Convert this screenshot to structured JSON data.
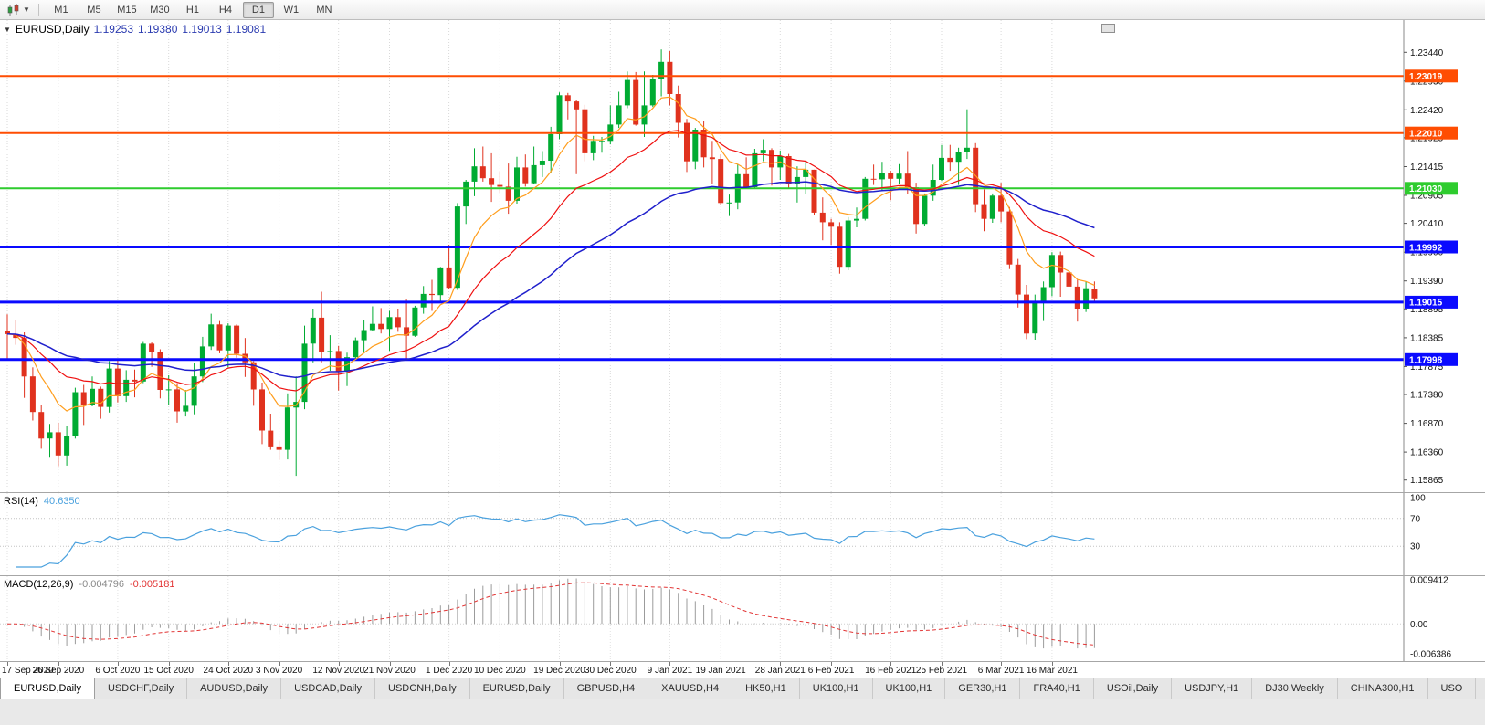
{
  "toolbar": {
    "timeframes": [
      "M1",
      "M5",
      "M15",
      "M30",
      "H1",
      "H4",
      "D1",
      "W1",
      "MN"
    ],
    "active_timeframe": "D1"
  },
  "tabs": {
    "active_index": 0,
    "items": [
      "EURUSD,Daily",
      "USDCHF,Daily",
      "AUDUSD,Daily",
      "USDCAD,Daily",
      "USDCNH,Daily",
      "EURUSD,Daily",
      "GBPUSD,H4",
      "XAUUSD,H4",
      "HK50,H1",
      "UK100,H1",
      "UK100,H1",
      "GER30,H1",
      "FRA40,H1",
      "USOil,Daily",
      "USDJPY,H1",
      "DJ30,Weekly",
      "CHINA300,H1",
      "USO"
    ]
  },
  "chart_data": {
    "type": "candlestick",
    "title": {
      "symbol": "EURUSD,Daily",
      "open": "1.19253",
      "high": "1.19380",
      "low": "1.19013",
      "close": "1.19081"
    },
    "colors": {
      "bull": "#00ab32",
      "bear": "#e0321e",
      "background": "#ffffff",
      "grid": "#d9d9d9"
    },
    "y_axis": {
      "price_top": 1.2401,
      "price_bottom": 1.1565,
      "ticks": [
        "1.23440",
        "1.22930",
        "1.22420",
        "1.21925",
        "1.21415",
        "1.20905",
        "1.20410",
        "1.19900",
        "1.19390",
        "1.18895",
        "1.18385",
        "1.17875",
        "1.17380",
        "1.16870",
        "1.16360",
        "1.15865"
      ]
    },
    "hlines": [
      {
        "price": 1.23019,
        "label": "1.23019",
        "color": "#ff4d02",
        "width": 2
      },
      {
        "price": 1.2201,
        "label": "1.22010",
        "color": "#ff4d02",
        "width": 2
      },
      {
        "price": 1.2103,
        "label": "1.21030",
        "color": "#2ecc2e",
        "width": 2
      },
      {
        "price": 1.19992,
        "label": "1.19992",
        "color": "#0a0aff",
        "width": 3
      },
      {
        "price": 1.19015,
        "label": "1.19015",
        "color": "#0a0aff",
        "width": 3
      },
      {
        "price": 1.17998,
        "label": "1.17998",
        "color": "#0a0aff",
        "width": 3
      }
    ],
    "moving_averages": [
      {
        "period": 8,
        "color": "#ff9d1c",
        "width": 1.2
      },
      {
        "period": 20,
        "color": "#ef1010",
        "width": 1.2
      },
      {
        "period": 45,
        "color": "#2020cc",
        "width": 1.5
      }
    ],
    "x_labels": [
      [
        0,
        "17 Sep 2020"
      ],
      [
        6,
        "26 Sep 2020"
      ],
      [
        13,
        "6 Oct 2020"
      ],
      [
        19,
        "15 Oct 2020"
      ],
      [
        26,
        "24 Oct 2020"
      ],
      [
        32,
        "3 Nov 2020"
      ],
      [
        39,
        "12 Nov 2020"
      ],
      [
        45,
        "21 Nov 2020"
      ],
      [
        52,
        "1 Dec 2020"
      ],
      [
        58,
        "10 Dec 2020"
      ],
      [
        65,
        "19 Dec 2020"
      ],
      [
        71,
        "30 Dec 2020"
      ],
      [
        78,
        "9 Jan 2021"
      ],
      [
        84,
        "19 Jan 2021"
      ],
      [
        91,
        "28 Jan 2021"
      ],
      [
        97,
        "6 Feb 2021"
      ],
      [
        104,
        "16 Feb 2021"
      ],
      [
        110,
        "25 Feb 2021"
      ],
      [
        117,
        "6 Mar 2021"
      ],
      [
        123,
        "16 Mar 2021"
      ]
    ],
    "candles": [
      [
        1.185,
        1.188,
        1.18,
        1.1845
      ],
      [
        1.1845,
        1.187,
        1.1826,
        1.1838
      ],
      [
        1.1838,
        1.1848,
        1.1732,
        1.177
      ],
      [
        1.177,
        1.1786,
        1.1692,
        1.1707
      ],
      [
        1.1707,
        1.1719,
        1.1642,
        1.166
      ],
      [
        1.166,
        1.1686,
        1.1626,
        1.1671
      ],
      [
        1.1671,
        1.1688,
        1.1611,
        1.163
      ],
      [
        1.163,
        1.1683,
        1.1612,
        1.1665
      ],
      [
        1.1665,
        1.175,
        1.166,
        1.1742
      ],
      [
        1.1742,
        1.1755,
        1.1684,
        1.172
      ],
      [
        1.172,
        1.177,
        1.1717,
        1.1748
      ],
      [
        1.1748,
        1.1752,
        1.1695,
        1.1716
      ],
      [
        1.1716,
        1.1797,
        1.1706,
        1.1784
      ],
      [
        1.1784,
        1.1798,
        1.1724,
        1.1735
      ],
      [
        1.1735,
        1.1781,
        1.1725,
        1.1764
      ],
      [
        1.1764,
        1.1782,
        1.1733,
        1.1761
      ],
      [
        1.1761,
        1.1831,
        1.1758,
        1.1828
      ],
      [
        1.1828,
        1.183,
        1.1787,
        1.1813
      ],
      [
        1.1813,
        1.1818,
        1.1731,
        1.1746
      ],
      [
        1.1746,
        1.1772,
        1.172,
        1.1747
      ],
      [
        1.1747,
        1.1758,
        1.1688,
        1.1708
      ],
      [
        1.1708,
        1.1746,
        1.1699,
        1.1718
      ],
      [
        1.1718,
        1.1794,
        1.1703,
        1.177
      ],
      [
        1.177,
        1.184,
        1.176,
        1.1823
      ],
      [
        1.1823,
        1.1881,
        1.1817,
        1.1862
      ],
      [
        1.1862,
        1.1868,
        1.1811,
        1.1816
      ],
      [
        1.1816,
        1.1864,
        1.1786,
        1.186
      ],
      [
        1.186,
        1.1862,
        1.1803,
        1.181
      ],
      [
        1.181,
        1.1838,
        1.1769,
        1.1795
      ],
      [
        1.1795,
        1.1797,
        1.1718,
        1.1747
      ],
      [
        1.1747,
        1.1759,
        1.165,
        1.1674
      ],
      [
        1.1674,
        1.1704,
        1.164,
        1.1646
      ],
      [
        1.1646,
        1.1656,
        1.1622,
        1.164
      ],
      [
        1.164,
        1.174,
        1.1623,
        1.1715
      ],
      [
        1.1715,
        1.177,
        1.1594,
        1.1725
      ],
      [
        1.1725,
        1.186,
        1.1712,
        1.1828
      ],
      [
        1.1828,
        1.189,
        1.1795,
        1.1874
      ],
      [
        1.1874,
        1.192,
        1.1795,
        1.1813
      ],
      [
        1.1813,
        1.1843,
        1.178,
        1.1815
      ],
      [
        1.1815,
        1.1824,
        1.1745,
        1.1779
      ],
      [
        1.1779,
        1.1812,
        1.1753,
        1.1804
      ],
      [
        1.1804,
        1.1839,
        1.1799,
        1.1834
      ],
      [
        1.1834,
        1.1869,
        1.1814,
        1.1852
      ],
      [
        1.1852,
        1.1894,
        1.185,
        1.1863
      ],
      [
        1.1863,
        1.1891,
        1.1846,
        1.1854
      ],
      [
        1.1854,
        1.1886,
        1.1815,
        1.1875
      ],
      [
        1.1875,
        1.189,
        1.1849,
        1.1857
      ],
      [
        1.1857,
        1.1906,
        1.18,
        1.1842
      ],
      [
        1.1842,
        1.1895,
        1.184,
        1.1892
      ],
      [
        1.1892,
        1.193,
        1.1881,
        1.1916
      ],
      [
        1.1916,
        1.1941,
        1.1886,
        1.1914
      ],
      [
        1.1914,
        1.1964,
        1.1902,
        1.1963
      ],
      [
        1.1963,
        1.2003,
        1.1924,
        1.1927
      ],
      [
        1.1927,
        1.2077,
        1.1923,
        1.2071
      ],
      [
        1.2071,
        1.2118,
        1.204,
        1.2115
      ],
      [
        1.2115,
        1.2174,
        1.2089,
        1.2142
      ],
      [
        1.2142,
        1.2177,
        1.2115,
        1.2121
      ],
      [
        1.2121,
        1.2165,
        1.2079,
        1.2109
      ],
      [
        1.2109,
        1.2133,
        1.2095,
        1.2106
      ],
      [
        1.2106,
        1.2147,
        1.2058,
        1.2081
      ],
      [
        1.2081,
        1.2159,
        1.2076,
        1.214
      ],
      [
        1.214,
        1.2163,
        1.2106,
        1.2112
      ],
      [
        1.2112,
        1.2177,
        1.211,
        1.2144
      ],
      [
        1.2144,
        1.2169,
        1.2123,
        1.2152
      ],
      [
        1.2152,
        1.2212,
        1.213,
        1.2199
      ],
      [
        1.2199,
        1.2273,
        1.219,
        1.2268
      ],
      [
        1.2268,
        1.2272,
        1.2225,
        1.2257
      ],
      [
        1.2257,
        1.2259,
        1.2128,
        1.2243
      ],
      [
        1.2243,
        1.2251,
        1.2151,
        1.2165
      ],
      [
        1.2165,
        1.2196,
        1.2153,
        1.2187
      ],
      [
        1.2187,
        1.2194,
        1.2166,
        1.2187
      ],
      [
        1.2187,
        1.225,
        1.2181,
        1.2216
      ],
      [
        1.2216,
        1.2274,
        1.221,
        1.225
      ],
      [
        1.225,
        1.231,
        1.2245,
        1.2295
      ],
      [
        1.2295,
        1.2309,
        1.2214,
        1.2216
      ],
      [
        1.2216,
        1.231,
        1.2194,
        1.225
      ],
      [
        1.225,
        1.2304,
        1.2247,
        1.2297
      ],
      [
        1.2297,
        1.2349,
        1.2266,
        1.2327
      ],
      [
        1.2327,
        1.2346,
        1.225,
        1.227
      ],
      [
        1.227,
        1.2285,
        1.2193,
        1.2219
      ],
      [
        1.2219,
        1.2226,
        1.2132,
        1.2151
      ],
      [
        1.2151,
        1.221,
        1.2137,
        1.2207
      ],
      [
        1.2207,
        1.2223,
        1.214,
        1.2158
      ],
      [
        1.2158,
        1.2187,
        1.2111,
        1.2155
      ],
      [
        1.2155,
        1.2163,
        1.2074,
        1.2077
      ],
      [
        1.2077,
        1.2092,
        1.2054,
        1.2078
      ],
      [
        1.2078,
        1.2145,
        1.2066,
        1.2128
      ],
      [
        1.2128,
        1.2158,
        1.2102,
        1.2105
      ],
      [
        1.2105,
        1.2173,
        1.2103,
        1.2165
      ],
      [
        1.2165,
        1.219,
        1.2151,
        1.2171
      ],
      [
        1.2171,
        1.2174,
        1.2108,
        1.214
      ],
      [
        1.214,
        1.217,
        1.2118,
        1.216
      ],
      [
        1.216,
        1.2164,
        1.2102,
        1.211
      ],
      [
        1.211,
        1.2142,
        1.2078,
        1.2123
      ],
      [
        1.2123,
        1.2152,
        1.2093,
        1.2136
      ],
      [
        1.2136,
        1.2136,
        1.2056,
        1.206
      ],
      [
        1.206,
        1.2087,
        1.2011,
        1.2043
      ],
      [
        1.2043,
        1.2049,
        1.2003,
        1.2035
      ],
      [
        1.2035,
        1.2043,
        1.1952,
        1.1964
      ],
      [
        1.1964,
        1.2052,
        1.1958,
        1.2046
      ],
      [
        1.2046,
        1.2069,
        1.2034,
        1.2049
      ],
      [
        1.2049,
        1.2123,
        1.2046,
        1.212
      ],
      [
        1.212,
        1.2145,
        1.2109,
        1.2119
      ],
      [
        1.2119,
        1.215,
        1.2098,
        1.213
      ],
      [
        1.213,
        1.2134,
        1.2082,
        1.212
      ],
      [
        1.212,
        1.2146,
        1.211,
        1.2129
      ],
      [
        1.2129,
        1.2169,
        1.2093,
        1.2105
      ],
      [
        1.2105,
        1.2113,
        1.2023,
        1.204
      ],
      [
        1.204,
        1.2094,
        1.2037,
        1.209
      ],
      [
        1.209,
        1.2145,
        1.2081,
        1.2118
      ],
      [
        1.2118,
        1.218,
        1.2116,
        1.2157
      ],
      [
        1.2157,
        1.218,
        1.2134,
        1.215
      ],
      [
        1.215,
        1.2175,
        1.2109,
        1.2168
      ],
      [
        1.2168,
        1.2243,
        1.2155,
        1.2175
      ],
      [
        1.2175,
        1.2183,
        1.2061,
        1.2075
      ],
      [
        1.2075,
        1.2101,
        1.2027,
        1.2049
      ],
      [
        1.2049,
        1.2094,
        1.2042,
        1.209
      ],
      [
        1.209,
        1.2113,
        1.2043,
        1.2062
      ],
      [
        1.2062,
        1.207,
        1.196,
        1.1968
      ],
      [
        1.1968,
        1.1978,
        1.1892,
        1.1915
      ],
      [
        1.1915,
        1.1932,
        1.1836,
        1.1846
      ],
      [
        1.1846,
        1.1915,
        1.1835,
        1.19
      ],
      [
        1.19,
        1.1938,
        1.1868,
        1.1928
      ],
      [
        1.1928,
        1.199,
        1.1912,
        1.1985
      ],
      [
        1.1985,
        1.1991,
        1.1911,
        1.1954
      ],
      [
        1.1954,
        1.1969,
        1.1911,
        1.1929
      ],
      [
        1.1929,
        1.1941,
        1.1867,
        1.189
      ],
      [
        1.189,
        1.1938,
        1.1884,
        1.1926
      ],
      [
        1.19253,
        1.1938,
        1.19013,
        1.19081
      ]
    ],
    "rsi": {
      "name": "RSI(14)",
      "value": "40.6350",
      "period": 14,
      "color": "#4aa1de",
      "levels": [
        70,
        30
      ],
      "axis": [
        [
          100,
          "100"
        ],
        [
          70,
          "70"
        ],
        [
          30,
          "30"
        ]
      ]
    },
    "macd": {
      "name": "MACD(12,26,9)",
      "value_main": "-0.004796",
      "value_signal": "-0.005181",
      "fast": 12,
      "slow": 26,
      "signal": 9,
      "range": [
        0.009412,
        -0.006386
      ],
      "colors": {
        "hist": "#9b9b9b",
        "signal": "#e23636"
      },
      "axis": [
        [
          0.009412,
          "0.009412"
        ],
        [
          0,
          "0.00"
        ],
        [
          -0.006386,
          "-0.006386"
        ]
      ]
    }
  }
}
